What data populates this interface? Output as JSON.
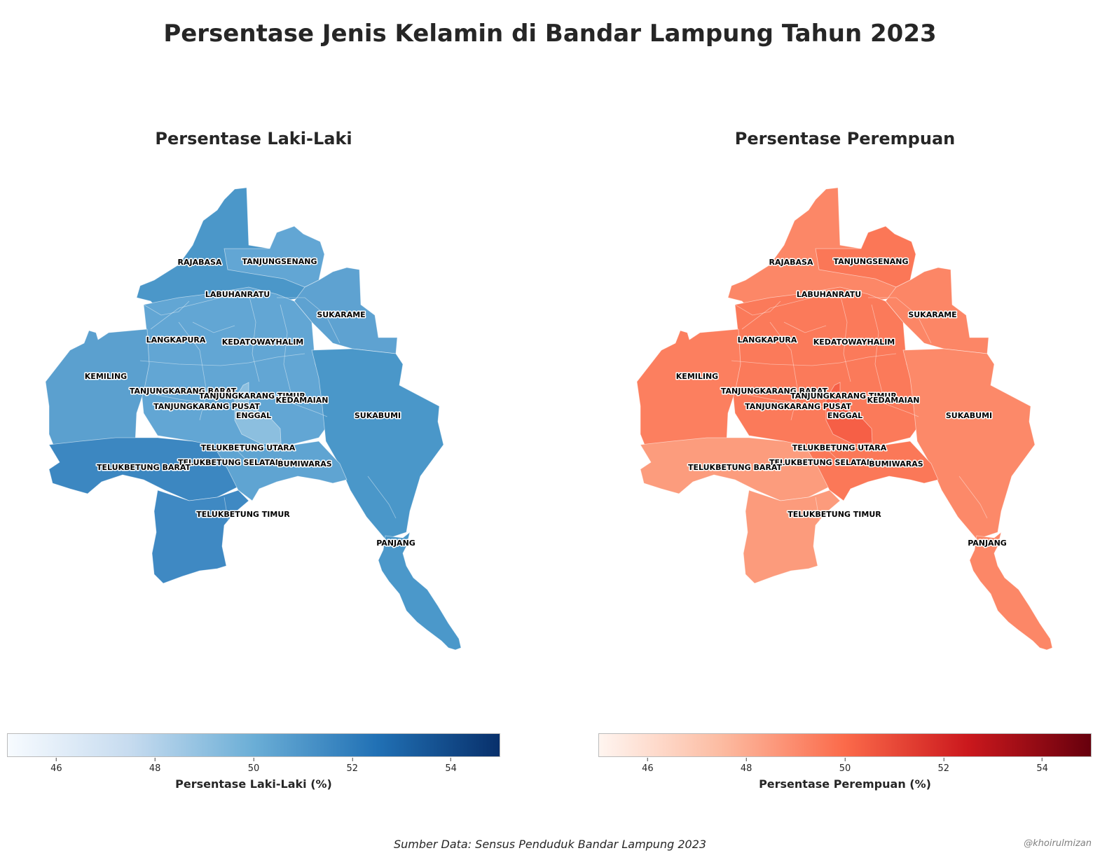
{
  "title": "Persentase Jenis Kelamin di Bandar Lampung Tahun 2023",
  "panels": {
    "male": {
      "title": "Persentase Laki-Laki",
      "colorbar_label": "Persentase Laki-Laki (%)",
      "colormap": [
        "#f7fbff",
        "#c6dbef",
        "#6baed6",
        "#2171b5",
        "#08306b"
      ],
      "region_colors": {
        "north": "#4b97c9",
        "tanjungsenang": "#62a6d4",
        "sukarame": "#5ea2d1",
        "center": "#62a6d4",
        "sukabumi": "#4a97c9",
        "west": "#5ba0cf",
        "enggal": "#8cbfdf",
        "telukbetung_barat": "#3c87c1",
        "telukbetung_selatan": "#5fa4d2",
        "telukbetung_timur": "#3f89c3",
        "panjang": "#4b98ca"
      }
    },
    "female": {
      "title": "Persentase Perempuan",
      "colorbar_label": "Persentase Perempuan (%)",
      "colormap": [
        "#fff5f0",
        "#fcbba1",
        "#fb6a4a",
        "#cb181d",
        "#67000d"
      ],
      "region_colors": {
        "north": "#fc8767",
        "tanjungsenang": "#fb7757",
        "sukarame": "#fc8666",
        "center": "#fb7a5a",
        "sukabumi": "#fc8969",
        "west": "#fc7f5f",
        "enggal": "#f65f46",
        "telukbetung_barat": "#fc9c7d",
        "telukbetung_selatan": "#fb7858",
        "telukbetung_timur": "#fc9b7c",
        "panjang": "#fc8767"
      }
    }
  },
  "colorbar": {
    "min": 45,
    "max": 55,
    "ticks": [
      46,
      48,
      50,
      52,
      54
    ]
  },
  "regions": [
    "RAJABASA",
    "TANJUNGSENANG",
    "LABUHANRATU",
    "SUKARAME",
    "LANGKAPURA",
    "KEDATOWAYHALIM",
    "KEMILING",
    "TANJUNGKARANG BARAT",
    "TANJUNGKARANG TIMUR",
    "KEDAMAIAN",
    "TANJUNGKARANG PUSAT",
    "ENGGAL",
    "SUKABUMI",
    "TELUKBETUNG UTARA",
    "TELUKBETUNG SELATAN",
    "BUMIWARAS",
    "TELUKBETUNG BARAT",
    "TELUKBETUNG TIMUR",
    "PANJANG"
  ],
  "source": "Sumber Data: Sensus Penduduk Bandar Lampung 2023",
  "credit": "@khoirulmizan"
}
